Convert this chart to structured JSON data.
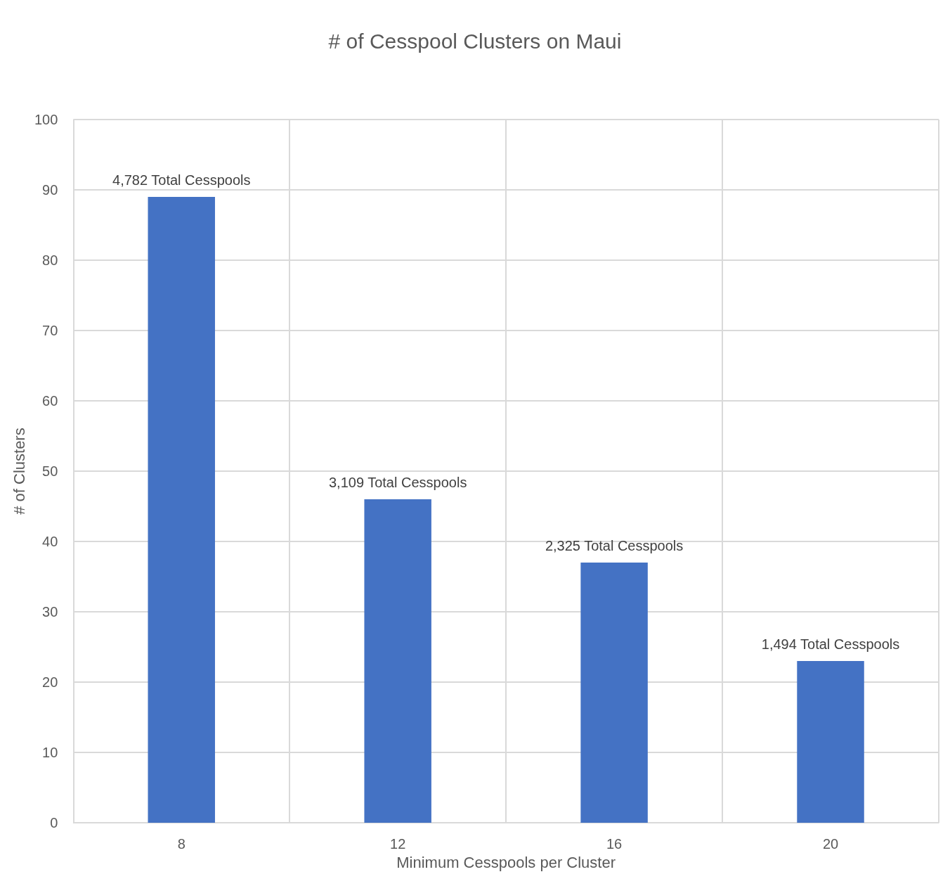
{
  "chart_data": {
    "type": "bar",
    "title": "# of Cesspool Clusters on Maui",
    "xlabel": "Minimum Cesspools per Cluster",
    "ylabel": "# of Clusters",
    "categories": [
      "8",
      "12",
      "16",
      "20"
    ],
    "values": [
      89,
      46,
      37,
      23
    ],
    "color": "#4472c4",
    "annotations": [
      {
        "text": "4,782 Total Cesspools",
        "x": "8",
        "y": 89
      },
      {
        "text": "3,109 Total Cesspools",
        "x": "12",
        "y": 46
      },
      {
        "text": "2,325 Total Cesspools",
        "x": "16",
        "y": 37
      },
      {
        "text": "1,494 Total Cesspools",
        "x": "20",
        "y": 23
      }
    ],
    "ylim": [
      0,
      100
    ],
    "yticks": [
      0,
      10,
      20,
      30,
      40,
      50,
      60,
      70,
      80,
      90,
      100
    ],
    "grid": true
  }
}
